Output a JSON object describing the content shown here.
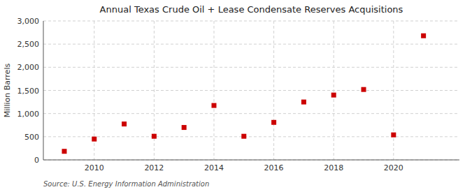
{
  "chart_data": {
    "type": "scatter",
    "title": "Annual Texas Crude Oil + Lease Condensate Reserves Acquisitions",
    "ylabel": "Million Barrels",
    "source": "Source: U.S. Energy Information Administration",
    "x": [
      2009,
      2010,
      2011,
      2012,
      2013,
      2014,
      2015,
      2016,
      2017,
      2018,
      2019,
      2020,
      2021
    ],
    "values": [
      185,
      450,
      775,
      510,
      700,
      1175,
      510,
      810,
      1250,
      1400,
      1520,
      540,
      2680
    ],
    "color": "#cc0000",
    "marker": "square",
    "xlim": [
      2008.3,
      2022.2
    ],
    "xticks": [
      2010,
      2012,
      2014,
      2016,
      2018,
      2020
    ],
    "ylim": [
      0,
      3000
    ],
    "yticks": [
      0,
      500,
      {
        "value": 1000,
        "label": "1,000"
      },
      {
        "value": 1500,
        "label": "1,500"
      },
      {
        "value": 2000,
        "label": "2,000"
      },
      {
        "value": 2500,
        "label": "2,500"
      },
      {
        "value": 3000,
        "label": "3,000"
      }
    ],
    "grid": true
  }
}
